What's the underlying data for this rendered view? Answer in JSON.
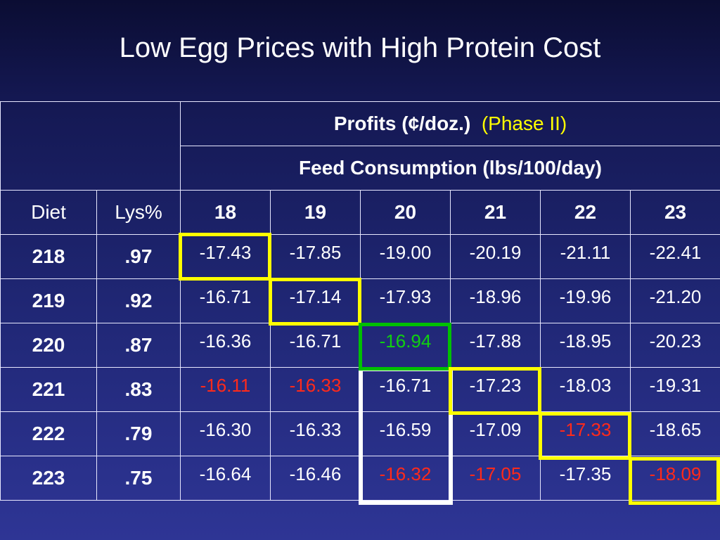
{
  "title": "Low Egg Prices with High Protein Cost",
  "header": {
    "profits_label": "Profits (¢/doz.)",
    "phase_label": "(Phase II)",
    "feed_label": "Feed Consumption (lbs/100/day)",
    "diet_label": "Diet",
    "lys_label": "Lys%",
    "feed_levels": [
      "18",
      "19",
      "20",
      "21",
      "22",
      "23"
    ]
  },
  "rows": [
    {
      "diet": "218",
      "lys": ".97",
      "values": [
        "-17.43",
        "-17.85",
        "-19.00",
        "-20.19",
        "-21.11",
        "-22.41"
      ]
    },
    {
      "diet": "219",
      "lys": ".92",
      "values": [
        "-16.71",
        "-17.14",
        "-17.93",
        "-18.96",
        "-19.96",
        "-21.20"
      ]
    },
    {
      "diet": "220",
      "lys": ".87",
      "values": [
        "-16.36",
        "-16.71",
        "-16.94",
        "-17.88",
        "-18.95",
        "-20.23"
      ]
    },
    {
      "diet": "221",
      "lys": ".83",
      "values": [
        "-16.11",
        "-16.33",
        "-16.71",
        "-17.23",
        "-18.03",
        "-19.31"
      ]
    },
    {
      "diet": "222",
      "lys": ".79",
      "values": [
        "-16.30",
        "-16.33",
        "-16.59",
        "-17.09",
        "-17.33",
        "-18.65"
      ]
    },
    {
      "diet": "223",
      "lys": ".75",
      "values": [
        "-16.64",
        "-16.46",
        "-16.32",
        "-17.05",
        "-17.35",
        "-18.09"
      ]
    }
  ],
  "colors": {
    "highlight_yellow": "#ffff00",
    "highlight_green": "#00c000",
    "highlight_red_text": "#ff2a1a",
    "highlight_green_text": "#10d010",
    "highlight_white": "#ffffff",
    "background": "#1f2673"
  }
}
